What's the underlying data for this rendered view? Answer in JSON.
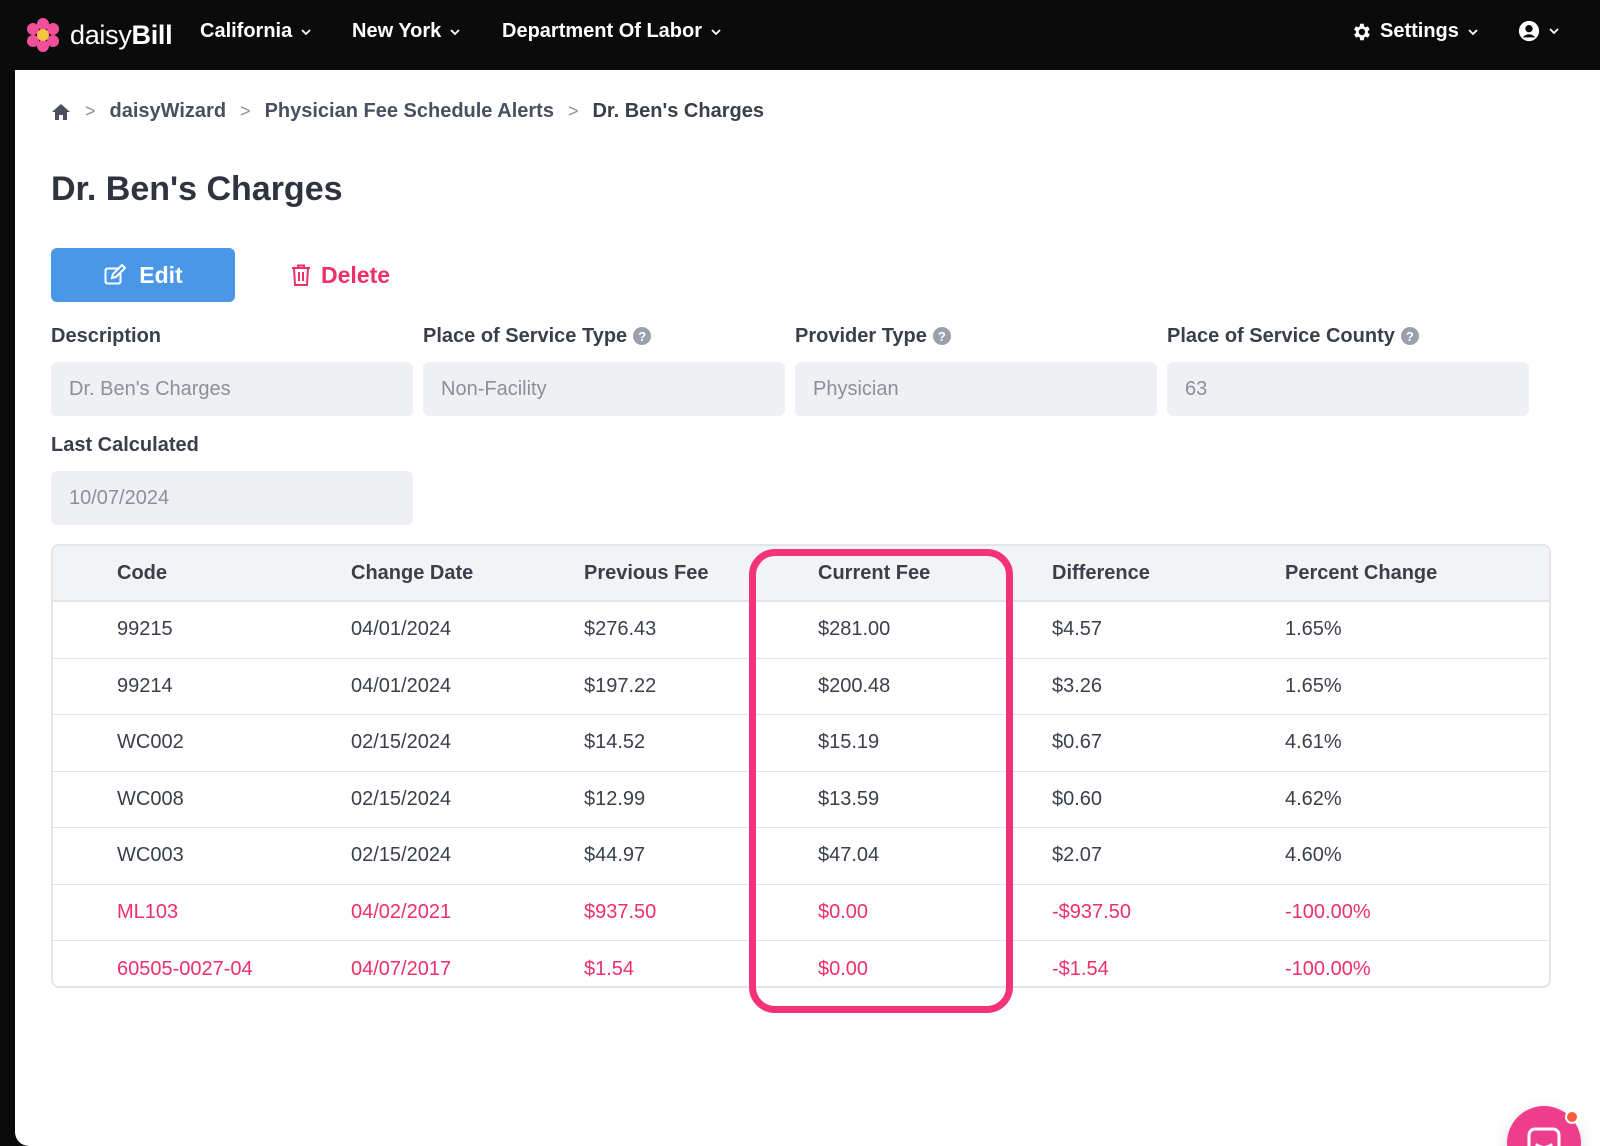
{
  "nav": {
    "brand_light": "daisy",
    "brand_bold": "Bill",
    "items": [
      {
        "label": "California"
      },
      {
        "label": "New York"
      },
      {
        "label": "Department Of Labor"
      }
    ],
    "settings_label": "Settings"
  },
  "breadcrumb": {
    "items": [
      "daisyWizard",
      "Physician Fee Schedule Alerts",
      "Dr. Ben's Charges"
    ]
  },
  "page": {
    "title": "Dr. Ben's Charges",
    "edit_label": "Edit",
    "delete_label": "Delete"
  },
  "fields": {
    "description": {
      "label": "Description",
      "value": "Dr. Ben's Charges"
    },
    "place_of_service_type": {
      "label": "Place of Service Type",
      "value": "Non-Facility"
    },
    "provider_type": {
      "label": "Provider Type",
      "value": "Physician"
    },
    "place_of_service_county": {
      "label": "Place of Service County",
      "value": "63"
    },
    "last_calculated": {
      "label": "Last Calculated",
      "value": "10/07/2024"
    }
  },
  "table": {
    "headers": [
      "Code",
      "Change Date",
      "Previous Fee",
      "Current Fee",
      "Difference",
      "Percent Change"
    ],
    "rows": [
      {
        "code": "99215",
        "change_date": "04/01/2024",
        "previous_fee": "$276.43",
        "current_fee": "$281.00",
        "difference": "$4.57",
        "percent_change": "1.65%",
        "negative": false
      },
      {
        "code": "99214",
        "change_date": "04/01/2024",
        "previous_fee": "$197.22",
        "current_fee": "$200.48",
        "difference": "$3.26",
        "percent_change": "1.65%",
        "negative": false
      },
      {
        "code": "WC002",
        "change_date": "02/15/2024",
        "previous_fee": "$14.52",
        "current_fee": "$15.19",
        "difference": "$0.67",
        "percent_change": "4.61%",
        "negative": false
      },
      {
        "code": "WC008",
        "change_date": "02/15/2024",
        "previous_fee": "$12.99",
        "current_fee": "$13.59",
        "difference": "$0.60",
        "percent_change": "4.62%",
        "negative": false
      },
      {
        "code": "WC003",
        "change_date": "02/15/2024",
        "previous_fee": "$44.97",
        "current_fee": "$47.04",
        "difference": "$2.07",
        "percent_change": "4.60%",
        "negative": false
      },
      {
        "code": "ML103",
        "change_date": "04/02/2021",
        "previous_fee": "$937.50",
        "current_fee": "$0.00",
        "difference": "-$937.50",
        "percent_change": "-100.00%",
        "negative": true
      },
      {
        "code": "60505-0027-04",
        "change_date": "04/07/2017",
        "previous_fee": "$1.54",
        "current_fee": "$0.00",
        "difference": "-$1.54",
        "percent_change": "-100.00%",
        "negative": true
      }
    ]
  },
  "colors": {
    "accent_blue": "#4a97e8",
    "danger_pink": "#ef2f6a",
    "highlight_pink": "#f4327a",
    "chat_pink": "#ee3d8c"
  },
  "icons": {
    "home": "home-icon",
    "edit": "edit-icon",
    "delete": "trash-icon",
    "settings": "gear-icon",
    "user": "user-circle-icon",
    "help": "question-circle-icon",
    "chat": "chat-icon"
  }
}
